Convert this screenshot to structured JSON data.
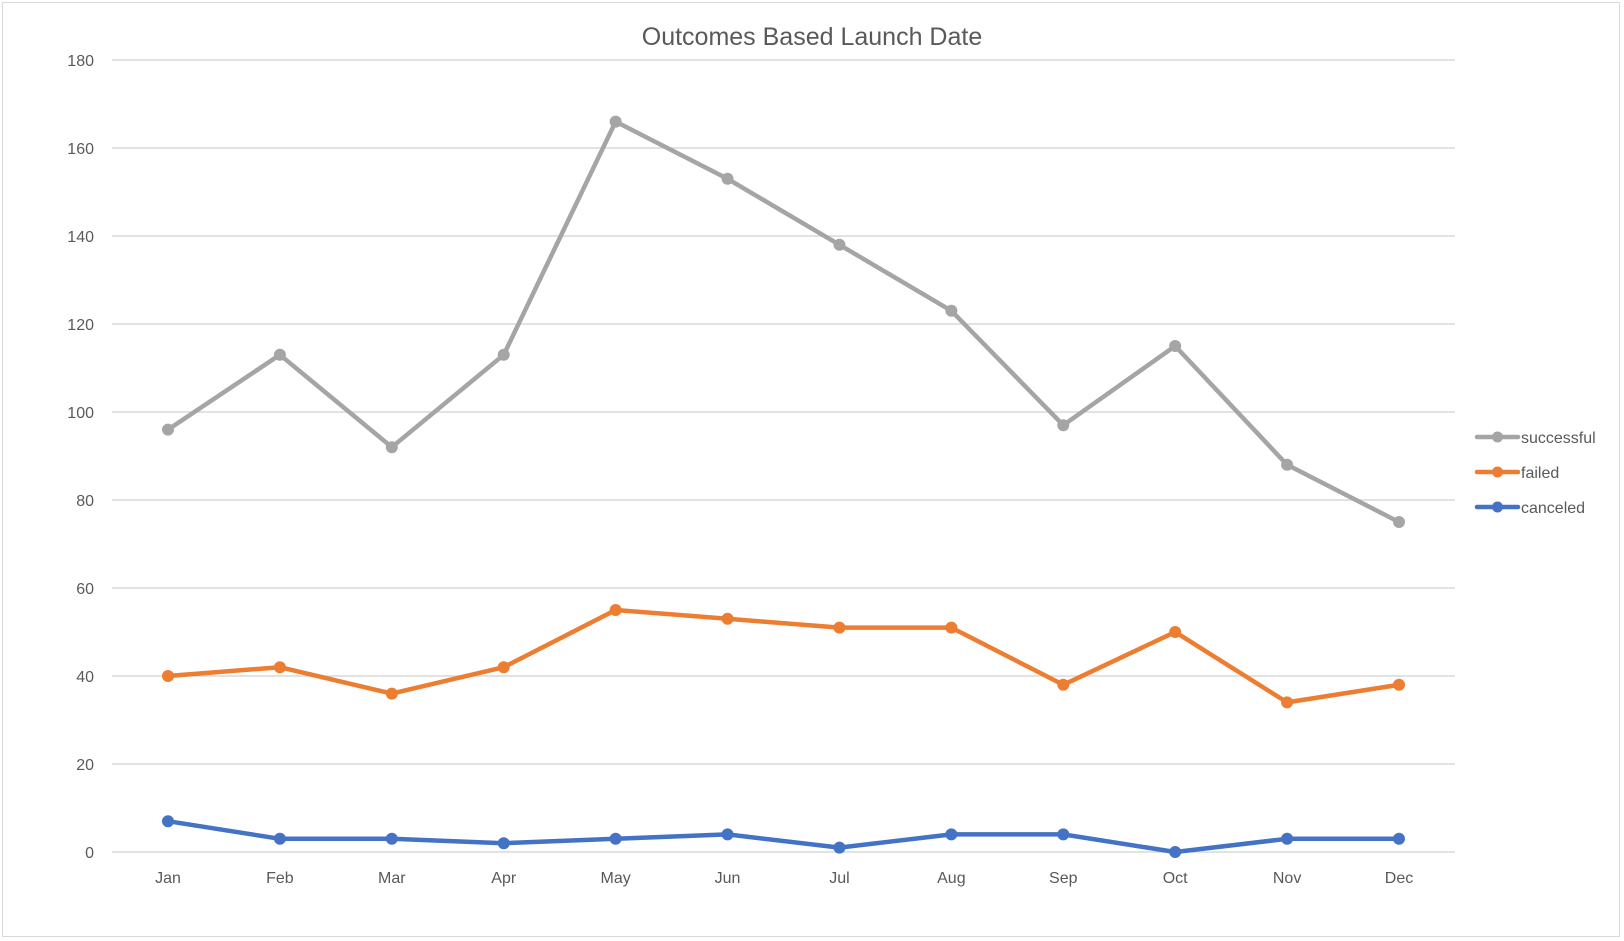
{
  "chart_data": {
    "type": "line",
    "title": "Outcomes Based Launch Date",
    "xlabel": "",
    "ylabel": "",
    "categories": [
      "Jan",
      "Feb",
      "Mar",
      "Apr",
      "May",
      "Jun",
      "Jul",
      "Aug",
      "Sep",
      "Oct",
      "Nov",
      "Dec"
    ],
    "ylim": [
      0,
      180
    ],
    "yticks": [
      0,
      20,
      40,
      60,
      80,
      100,
      120,
      140,
      160,
      180
    ],
    "grid": true,
    "legend_position": "right",
    "series": [
      {
        "name": "successful",
        "color": "#a5a5a5",
        "values": [
          96,
          113,
          92,
          113,
          166,
          153,
          138,
          123,
          97,
          115,
          88,
          75
        ]
      },
      {
        "name": "failed",
        "color": "#ed7d31",
        "values": [
          40,
          42,
          36,
          42,
          55,
          53,
          51,
          51,
          38,
          50,
          34,
          38
        ]
      },
      {
        "name": "canceled",
        "color": "#4472c4",
        "values": [
          7,
          3,
          3,
          2,
          3,
          4,
          1,
          4,
          4,
          0,
          3,
          3
        ]
      }
    ]
  }
}
